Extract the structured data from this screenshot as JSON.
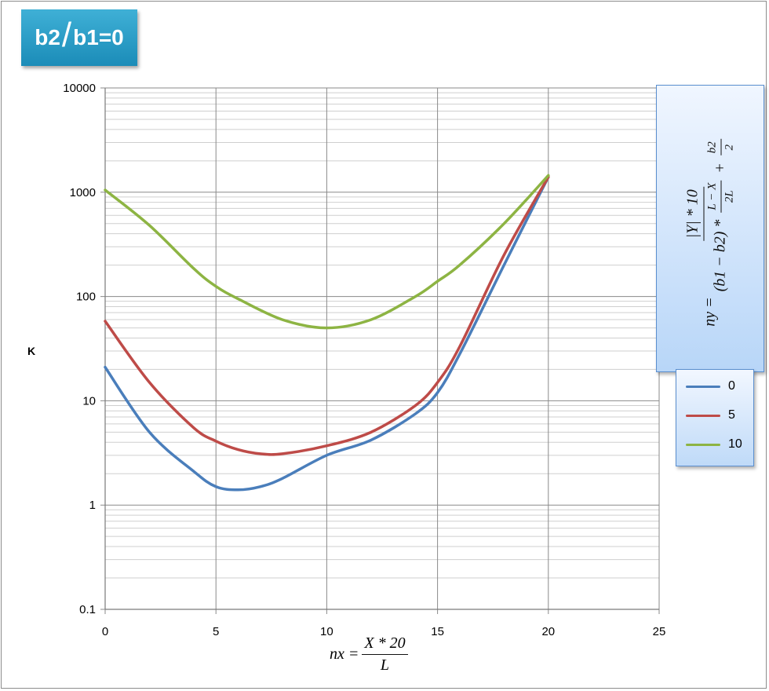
{
  "badge": {
    "left": "b2",
    "right": "b1=0"
  },
  "formula": {
    "lhs": "ny =",
    "numerator": "|Y| * 10",
    "den_prefix": "(b1 − b2) *",
    "inner_num": "L − X",
    "inner_den": "2L",
    "plus": "+",
    "half_num": "b2",
    "half_den": "2"
  },
  "xlabel_formula": {
    "lhs": "nx =",
    "numerator": "X * 20",
    "denominator": "L"
  },
  "chart_data": {
    "type": "line",
    "ylabel": "K",
    "y_scale": "log",
    "ylim": [
      0.1,
      10000
    ],
    "xlim": [
      0,
      25
    ],
    "x_ticks": [
      "0",
      "5",
      "10",
      "15",
      "20",
      "25"
    ],
    "y_ticks": [
      "0.1",
      "1",
      "10",
      "100",
      "1000",
      "10000"
    ],
    "grid": true,
    "legend_position": "right",
    "series": [
      {
        "name": "0",
        "color": "#4a7ebb",
        "x": [
          0,
          2,
          4,
          5,
          6,
          7,
          8,
          10,
          12,
          14,
          15,
          16,
          18,
          20
        ],
        "y": [
          21,
          5,
          2.1,
          1.5,
          1.4,
          1.5,
          1.8,
          3,
          4.2,
          7.5,
          12,
          28,
          200,
          1400
        ]
      },
      {
        "name": "5",
        "color": "#be4b48",
        "x": [
          0,
          2,
          4,
          5,
          6,
          7,
          8,
          10,
          12,
          14,
          15,
          16,
          18,
          20
        ],
        "y": [
          58,
          15,
          5.5,
          4.1,
          3.4,
          3.1,
          3.1,
          3.7,
          5,
          9,
          15,
          33,
          250,
          1400
        ]
      },
      {
        "name": "10",
        "color": "#8db443",
        "x": [
          0,
          2,
          4,
          5,
          6,
          8,
          10,
          12,
          14,
          15,
          16,
          18,
          20
        ],
        "y": [
          1050,
          480,
          185,
          125,
          95,
          60,
          50,
          60,
          100,
          140,
          200,
          500,
          1450
        ]
      }
    ]
  }
}
